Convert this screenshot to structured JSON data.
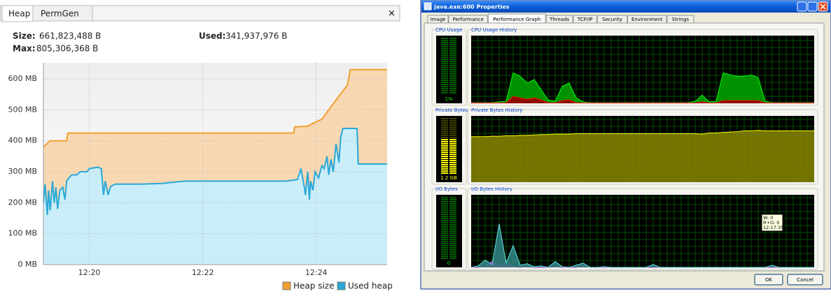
{
  "tabs": [
    "Heap",
    "PermGen"
  ],
  "close": "✕",
  "stats": {
    "size_label": "Size:",
    "size": "661,823,488 B",
    "used_label": "Used:",
    "used": "341,937,976 B",
    "max_label": "Max:",
    "max": "805,306,368 B"
  },
  "chart_data": {
    "type": "area",
    "xlim": [
      19.19,
      25.25
    ],
    "xticks": [
      {
        "value": 20,
        "label": "12:20"
      },
      {
        "value": 22,
        "label": "12:22"
      },
      {
        "value": 24,
        "label": "12:24"
      }
    ],
    "ylim": [
      0,
      652
    ],
    "yticks": [
      {
        "value": 0,
        "label": "0 MB"
      },
      {
        "value": 100,
        "label": "100 MB"
      },
      {
        "value": 200,
        "label": "200 MB"
      },
      {
        "value": 300,
        "label": "300 MB"
      },
      {
        "value": 400,
        "label": "400 MB"
      },
      {
        "value": 500,
        "label": "500 MB"
      },
      {
        "value": 600,
        "label": "600 MB"
      }
    ],
    "grid": true,
    "legend": "bottom-right",
    "series": [
      {
        "name": "Heap size",
        "color": "#f0a030",
        "fill": "#f8d8b2",
        "x": [
          19.19,
          19.25,
          19.3,
          19.6,
          19.62,
          23.6,
          23.62,
          23.85,
          23.87,
          24.1,
          24.3,
          24.55,
          24.6,
          25.25
        ],
        "values": [
          380,
          390,
          400,
          400,
          425,
          425,
          445,
          447,
          450,
          470,
          520,
          580,
          630,
          630
        ]
      },
      {
        "name": "Used heap",
        "color": "#2aa8d8",
        "fill": "#c9eef9",
        "x": [
          19.19,
          19.22,
          19.26,
          19.28,
          19.31,
          19.35,
          19.38,
          19.41,
          19.44,
          19.48,
          19.53,
          19.57,
          19.6,
          19.64,
          19.69,
          19.78,
          19.84,
          19.9,
          19.96,
          20.0,
          20.15,
          20.21,
          20.25,
          20.28,
          20.33,
          20.37,
          20.4,
          20.46,
          20.89,
          21.26,
          21.69,
          22.12,
          22.74,
          23.48,
          23.67,
          23.73,
          23.79,
          23.81,
          23.85,
          23.88,
          23.9,
          23.94,
          23.98,
          24.04,
          24.1,
          24.14,
          24.19,
          24.22,
          24.26,
          24.3,
          24.35,
          24.4,
          24.43,
          24.47,
          24.53,
          24.59,
          24.65,
          24.72,
          24.74,
          24.96,
          25.25
        ],
        "values": [
          200,
          260,
          160,
          240,
          175,
          270,
          200,
          250,
          180,
          240,
          250,
          210,
          270,
          280,
          290,
          290,
          300,
          300,
          300,
          310,
          315,
          310,
          225,
          270,
          225,
          250,
          255,
          260,
          260,
          262,
          270,
          270,
          270,
          270,
          275,
          310,
          250,
          225,
          300,
          210,
          270,
          240,
          300,
          280,
          320,
          310,
          350,
          290,
          340,
          300,
          390,
          330,
          410,
          440,
          440,
          440,
          440,
          440,
          325,
          325,
          325
        ]
      }
    ]
  },
  "window": {
    "title": "java.exe:600 Properties",
    "tabs": [
      "Image",
      "Performance",
      "Performance Graph",
      "Threads",
      "TCP/IP",
      "Security",
      "Environment",
      "Strings"
    ],
    "active_tab": 2,
    "panels": [
      {
        "gauge_title": "CPU Usage",
        "gauge_label": "1%",
        "history_title": "CPU Usage History",
        "series": [
          {
            "color": "#00ff00",
            "fill": "#00a000",
            "values": [
              1,
              1,
              1,
              1,
              2,
              3,
              45,
              40,
              30,
              35,
              20,
              5,
              3,
              25,
              30,
              8,
              2,
              1,
              1,
              1,
              1,
              1,
              1,
              1,
              1,
              1,
              1,
              1,
              1,
              1,
              1,
              1,
              3,
              12,
              2,
              3,
              45,
              42,
              40,
              40,
              42,
              38,
              3,
              1,
              1,
              1,
              1,
              1,
              1,
              1
            ]
          },
          {
            "color": "#ff0000",
            "fill": "#a00000",
            "values": [
              0.5,
              0.5,
              0.5,
              0.5,
              0.5,
              0.5,
              10,
              8,
              6,
              8,
              5,
              0.5,
              0.5,
              4,
              5,
              0.5,
              0.5,
              0.5,
              0.5,
              0.5,
              0.5,
              0.5,
              0.5,
              0.5,
              0.5,
              0.5,
              0.5,
              0.5,
              0.5,
              0.5,
              0.5,
              0.5,
              0.5,
              2,
              0.5,
              0.5,
              4,
              4,
              4,
              4,
              4,
              4,
              0.5,
              0.5,
              0.5,
              0.5,
              0.5,
              0.5,
              0.5,
              0.5
            ]
          }
        ]
      },
      {
        "gauge_title": "Private Bytes",
        "gauge_label": "1.2 GB",
        "history_title": "Private Bytes History",
        "series": [
          {
            "color": "#ffff00",
            "fill": "#808000",
            "values": [
              1.1,
              1.1,
              1.1,
              1.11,
              1.11,
              1.12,
              1.12,
              1.13,
              1.13,
              1.14,
              1.15,
              1.15,
              1.16,
              1.16,
              1.16,
              1.17,
              1.17,
              1.17,
              1.17,
              1.17,
              1.17,
              1.17,
              1.17,
              1.17,
              1.17,
              1.17,
              1.17,
              1.17,
              1.17,
              1.17,
              1.17,
              1.17,
              1.17,
              1.16,
              1.19,
              1.19,
              1.2,
              1.21,
              1.22,
              1.24,
              1.24,
              1.25,
              1.24,
              1.24,
              1.24,
              1.24,
              1.24,
              1.24,
              1.24,
              1.24
            ]
          }
        ]
      },
      {
        "gauge_title": "I/O Bytes",
        "gauge_label": "0",
        "history_title": "I/O Bytes History",
        "series": [
          {
            "color": "#ff40ff",
            "fill": "#c000c0",
            "values": [
              0,
              0,
              3,
              8,
              2,
              5,
              1,
              0,
              2,
              0,
              0,
              0,
              1,
              0,
              0,
              0,
              3,
              0,
              0,
              0,
              0,
              0,
              0,
              0,
              0,
              0,
              0,
              0,
              0,
              0,
              0,
              0,
              0,
              0,
              0,
              0,
              0,
              0,
              0,
              0,
              0,
              0,
              0,
              0,
              0,
              0,
              0,
              0,
              0,
              0
            ]
          },
          {
            "color": "#60e0e0",
            "fill": "#308080",
            "values": [
              0,
              2,
              10,
              4,
              60,
              6,
              30,
              3,
              5,
              1,
              2,
              0,
              8,
              1,
              0,
              3,
              6,
              0,
              0,
              1,
              0,
              0,
              0,
              0,
              0,
              0,
              4,
              0,
              0,
              0,
              0,
              0,
              0,
              0,
              0,
              0,
              0,
              0,
              0,
              0,
              0,
              0,
              0,
              3,
              0,
              0,
              0,
              0,
              0,
              0
            ]
          }
        ]
      }
    ],
    "tooltip": [
      "W: 0",
      "R+O: 0",
      "12:17:35"
    ],
    "buttons": [
      "OK",
      "Cancel"
    ]
  }
}
